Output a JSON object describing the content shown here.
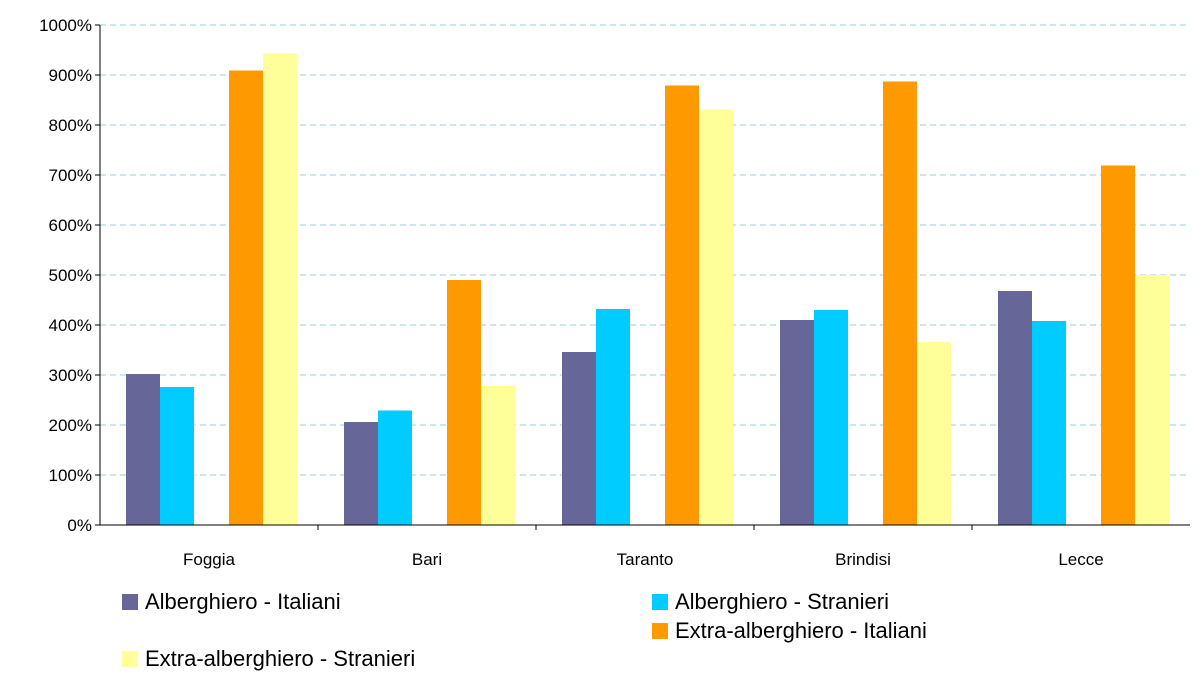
{
  "chart_data": {
    "type": "bar",
    "categories": [
      "Foggia",
      "Bari",
      "Taranto",
      "Brindisi",
      "Lecce"
    ],
    "series": [
      {
        "name": "Alberghiero - Italiani",
        "color": "#666699",
        "values": [
          302,
          206,
          346,
          410,
          468
        ]
      },
      {
        "name": "Alberghiero - Stranieri",
        "color": "#00ccff",
        "values": [
          276,
          229,
          432,
          430,
          408
        ]
      },
      {
        "name": "Extra-alberghiero - Italiani",
        "color": "#ff9900",
        "values": [
          909,
          490,
          879,
          887,
          719
        ]
      },
      {
        "name": "Extra-alberghiero - Stranieri",
        "color": "#ffff99",
        "values": [
          943,
          278,
          831,
          366,
          500
        ]
      }
    ],
    "ylim": [
      0,
      1000
    ],
    "yticks": [
      "0%",
      "100%",
      "200%",
      "300%",
      "400%",
      "500%",
      "600%",
      "700%",
      "800%",
      "900%",
      "1000%"
    ],
    "grid": true,
    "legend_position": "bottom"
  }
}
